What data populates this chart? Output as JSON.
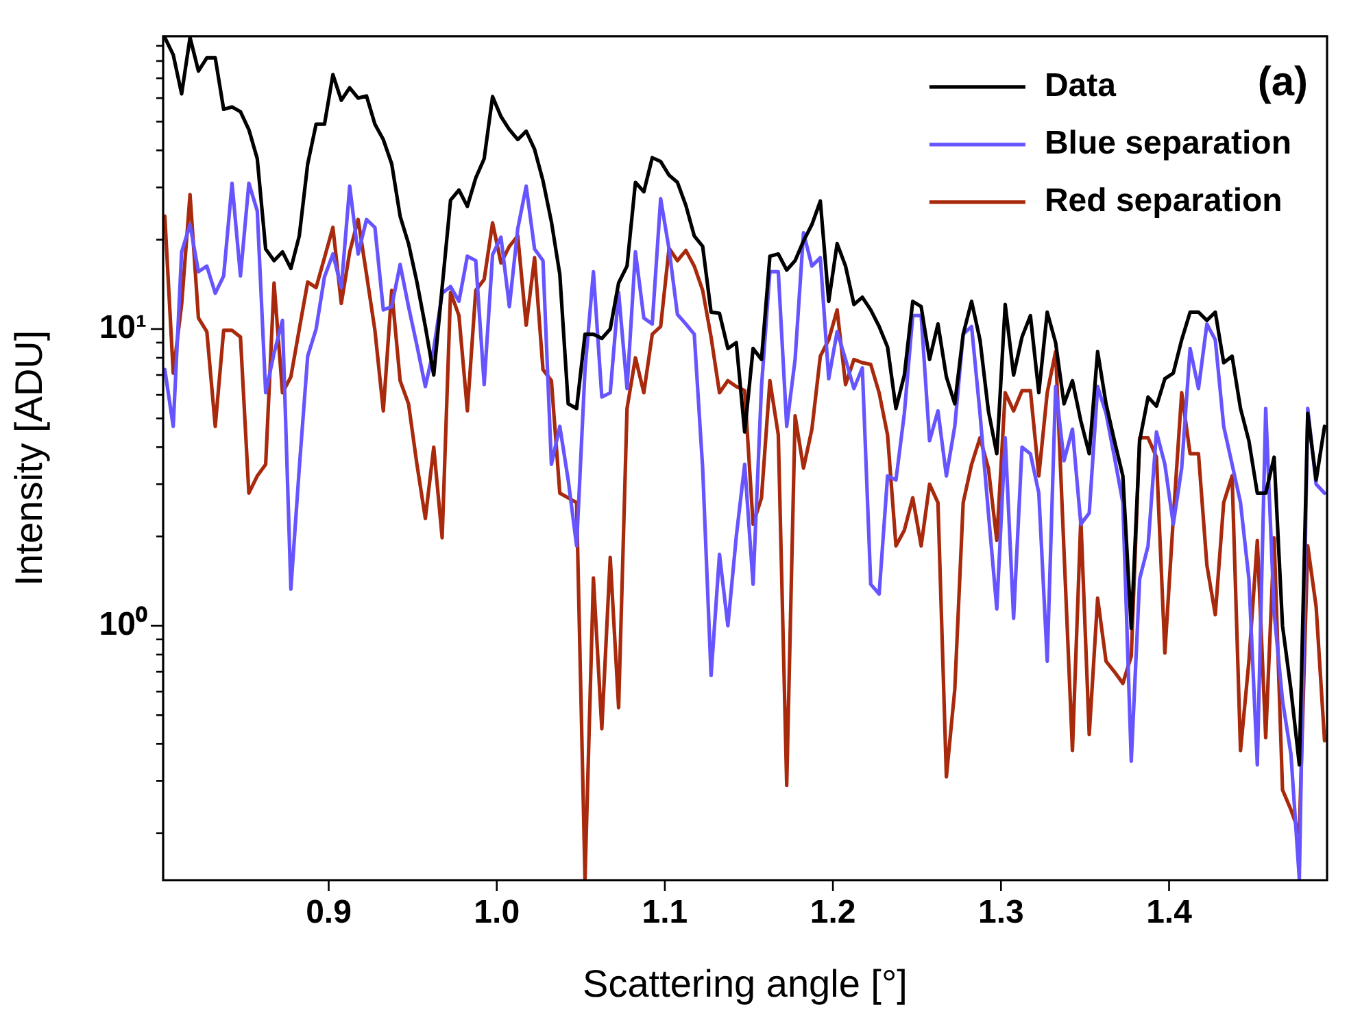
{
  "chart_data": {
    "type": "line",
    "xlabel": "Scattering angle [°]",
    "ylabel": "Intensity [ADU]",
    "annotations": [
      "(a)"
    ],
    "log": "y",
    "legend": "top right",
    "grid": false,
    "xlim": [
      0.8015,
      1.494
    ],
    "xticks": [
      {
        "value": 0.9,
        "label": "0.9"
      },
      {
        "value": 1.0,
        "label": "1.0"
      },
      {
        "value": 1.1,
        "label": "1.1"
      },
      {
        "value": 1.2,
        "label": "1.2"
      },
      {
        "value": 1.3,
        "label": "1.3"
      },
      {
        "value": 1.4,
        "label": "1.4"
      }
    ],
    "ylim": [
      0.139,
      97
    ],
    "yticks": [
      {
        "value": 0.2,
        "label": null
      },
      {
        "value": 0.3,
        "label": null
      },
      {
        "value": 0.4,
        "label": null
      },
      {
        "value": 0.5,
        "label": null
      },
      {
        "value": 0.6,
        "label": null
      },
      {
        "value": 0.7,
        "label": null
      },
      {
        "value": 0.8,
        "label": null
      },
      {
        "value": 0.9,
        "label": null
      },
      {
        "value": 1,
        "label": "10⁰"
      },
      {
        "value": 2,
        "label": null
      },
      {
        "value": 3,
        "label": null
      },
      {
        "value": 4,
        "label": null
      },
      {
        "value": 5,
        "label": null
      },
      {
        "value": 6,
        "label": null
      },
      {
        "value": 7,
        "label": null
      },
      {
        "value": 8,
        "label": null
      },
      {
        "value": 9,
        "label": null
      },
      {
        "value": 10,
        "label": "10¹"
      },
      {
        "value": 20,
        "label": null
      },
      {
        "value": 30,
        "label": null
      },
      {
        "value": 40,
        "label": null
      },
      {
        "value": 50,
        "label": null
      },
      {
        "value": 60,
        "label": null
      },
      {
        "value": 70,
        "label": null
      },
      {
        "value": 80,
        "label": null
      },
      {
        "value": 90,
        "label": null
      }
    ],
    "x": [
      0.8025,
      0.8075,
      0.8125,
      0.8175,
      0.8225,
      0.8275,
      0.8325,
      0.8375,
      0.8425,
      0.8475,
      0.8525,
      0.8575,
      0.8625,
      0.8675,
      0.8725,
      0.8775,
      0.8825,
      0.8875,
      0.8925,
      0.8975,
      0.9025,
      0.9075,
      0.9125,
      0.9175,
      0.9225,
      0.9275,
      0.9325,
      0.9375,
      0.9425,
      0.9475,
      0.9525,
      0.9575,
      0.9625,
      0.9675,
      0.9725,
      0.9775,
      0.9825,
      0.9875,
      0.9925,
      0.9975,
      1.0025,
      1.0075,
      1.0125,
      1.0175,
      1.0225,
      1.0275,
      1.0325,
      1.0375,
      1.0425,
      1.0475,
      1.0525,
      1.0575,
      1.0625,
      1.0675,
      1.0725,
      1.0775,
      1.0825,
      1.0875,
      1.0925,
      1.0975,
      1.1025,
      1.1075,
      1.1125,
      1.1175,
      1.1225,
      1.1275,
      1.1325,
      1.1375,
      1.1425,
      1.1475,
      1.1525,
      1.1575,
      1.1625,
      1.1675,
      1.1725,
      1.1775,
      1.1825,
      1.1875,
      1.1925,
      1.1975,
      1.2025,
      1.2075,
      1.2125,
      1.2175,
      1.2225,
      1.2275,
      1.2325,
      1.2375,
      1.2425,
      1.2475,
      1.2525,
      1.2575,
      1.2625,
      1.2675,
      1.2725,
      1.2775,
      1.2825,
      1.2875,
      1.2925,
      1.2975,
      1.3025,
      1.3075,
      1.3125,
      1.3175,
      1.3225,
      1.3275,
      1.3325,
      1.3375,
      1.3425,
      1.3475,
      1.3525,
      1.3575,
      1.3625,
      1.3675,
      1.3725,
      1.3775,
      1.3825,
      1.3875,
      1.3925,
      1.3975,
      1.4025,
      1.4075,
      1.4125,
      1.4175,
      1.4225,
      1.4275,
      1.4325,
      1.4375,
      1.4425,
      1.4475,
      1.4525,
      1.4575,
      1.4625,
      1.4675,
      1.4725,
      1.4775,
      1.4825,
      1.4875,
      1.4925
    ],
    "series": [
      {
        "name": "Data",
        "color": "#000000",
        "values": [
          96,
          84,
          62,
          96,
          74,
          82,
          82,
          55,
          56,
          54,
          47,
          37.5,
          18.6,
          17,
          18.2,
          16,
          20.6,
          36,
          49,
          49,
          72,
          59,
          65,
          60,
          61,
          49,
          43.5,
          36,
          24,
          19.4,
          14.4,
          10.2,
          7.0,
          13.8,
          27.2,
          29.4,
          25.9,
          32.3,
          37.5,
          60.7,
          52,
          47,
          43.5,
          46.4,
          40.3,
          31.6,
          23,
          15.3,
          5.6,
          5.4,
          9.6,
          9.6,
          9.3,
          10,
          14.3,
          16.3,
          31.2,
          29,
          37.8,
          36.7,
          33,
          31.2,
          26.1,
          20.6,
          19,
          11.4,
          11.3,
          8.6,
          9.0,
          4.5,
          8.6,
          7.9,
          17.6,
          17.9,
          15.8,
          17,
          19.8,
          22.5,
          27,
          12.4,
          19.4,
          16.3,
          12.1,
          12.8,
          11.6,
          10.2,
          8.7,
          5.4,
          7.0,
          12.4,
          11.9,
          7.9,
          10.4,
          6.9,
          5.6,
          9.6,
          12.4,
          9.2,
          5.3,
          3.8,
          12.1,
          7.0,
          9.4,
          11.1,
          6.1,
          11.4,
          9.0,
          5.6,
          6.7,
          4.9,
          3.8,
          8.4,
          5.6,
          4.2,
          3.2,
          0.98,
          4.2,
          5.9,
          5.5,
          6.8,
          7.1,
          9.2,
          11.4,
          11.4,
          10.7,
          11.4,
          7.7,
          8.1,
          5.4,
          4.2,
          2.8,
          2.8,
          3.7,
          1.0,
          0.61,
          0.34,
          5.2,
          3.1,
          4.7
        ]
      },
      {
        "name": "Blue separation",
        "color": "#6655ff",
        "values": [
          7.3,
          4.7,
          18.2,
          22.5,
          15.6,
          16.3,
          13.2,
          15.1,
          31,
          15.1,
          31,
          25,
          6.1,
          8.3,
          10.7,
          1.33,
          3.4,
          8.1,
          10,
          15,
          17.9,
          13.8,
          30.3,
          17.9,
          23.4,
          22,
          11.6,
          11.9,
          16.5,
          11.9,
          8.8,
          6.4,
          8.6,
          13.2,
          13.9,
          12.4,
          17.6,
          17,
          6.5,
          17.8,
          20.4,
          11.9,
          21.8,
          30.3,
          18.6,
          17,
          3.5,
          4.7,
          3.1,
          1.86,
          7.3,
          15.6,
          5.9,
          6.1,
          13.3,
          6.3,
          18.2,
          10.9,
          10.4,
          27.5,
          18.6,
          11.2,
          10.4,
          9.6,
          3.4,
          0.68,
          1.74,
          1.0,
          2.0,
          3.5,
          1.38,
          6.4,
          15.6,
          15.6,
          4.7,
          7.9,
          21.1,
          16.3,
          17.4,
          6.8,
          9.8,
          7.9,
          6.3,
          7.4,
          1.38,
          1.28,
          3.2,
          3.1,
          5.2,
          11.1,
          11.1,
          4.2,
          5.3,
          3.2,
          4.7,
          9.6,
          10.2,
          5.2,
          2.4,
          1.14,
          4.3,
          1.06,
          4.0,
          3.8,
          2.8,
          0.76,
          6.4,
          3.6,
          4.6,
          2.2,
          2.4,
          6.4,
          5.2,
          3.7,
          2.6,
          0.35,
          1.44,
          1.86,
          4.5,
          3.5,
          2.2,
          3.4,
          8.6,
          6.3,
          10.4,
          9.2,
          4.7,
          3.5,
          2.6,
          1.44,
          0.34,
          5.4,
          1.11,
          0.56,
          0.37,
          0.14,
          5.4,
          3.0,
          2.8
        ]
      },
      {
        "name": "Red separation",
        "color": "#a8290c",
        "values": [
          24,
          7.1,
          12.1,
          28.4,
          10.9,
          9.8,
          4.7,
          9.9,
          9.9,
          9.4,
          2.8,
          3.2,
          3.5,
          14.3,
          6.1,
          6.9,
          10,
          14.4,
          13.8,
          17.4,
          22,
          12.2,
          18.2,
          23.4,
          15.3,
          9.9,
          5.3,
          13.5,
          6.7,
          5.6,
          3.5,
          2.3,
          4.0,
          1.98,
          13.3,
          11.1,
          5.3,
          13.5,
          14.7,
          22.8,
          16.7,
          19,
          20.6,
          10.3,
          17.4,
          7.3,
          6.7,
          2.8,
          2.7,
          2.6,
          0.14,
          1.45,
          0.45,
          1.7,
          0.53,
          5.4,
          8.0,
          6.1,
          9.6,
          10.2,
          18.7,
          17,
          18.4,
          16.3,
          13.5,
          9.4,
          6.1,
          6.7,
          6.4,
          6.2,
          2.2,
          2.7,
          6.7,
          4.4,
          0.29,
          5.1,
          3.4,
          4.6,
          8.1,
          9.2,
          11.6,
          6.5,
          7.9,
          7.7,
          7.6,
          6.1,
          4.4,
          1.86,
          2.1,
          2.7,
          1.86,
          3.0,
          2.6,
          0.31,
          0.61,
          2.6,
          3.5,
          4.3,
          3.4,
          1.94,
          6.1,
          5.3,
          6.2,
          6.2,
          3.2,
          6.1,
          8.4,
          1.78,
          0.38,
          2.3,
          0.43,
          1.24,
          0.76,
          0.7,
          0.64,
          0.79,
          4.3,
          4.3,
          3.7,
          0.81,
          2.3,
          6.1,
          3.8,
          3.8,
          1.6,
          1.09,
          2.6,
          3.2,
          0.38,
          0.76,
          1.94,
          0.42,
          1.98,
          0.28,
          0.24,
          0.2,
          1.86,
          1.16,
          0.41
        ]
      }
    ]
  }
}
